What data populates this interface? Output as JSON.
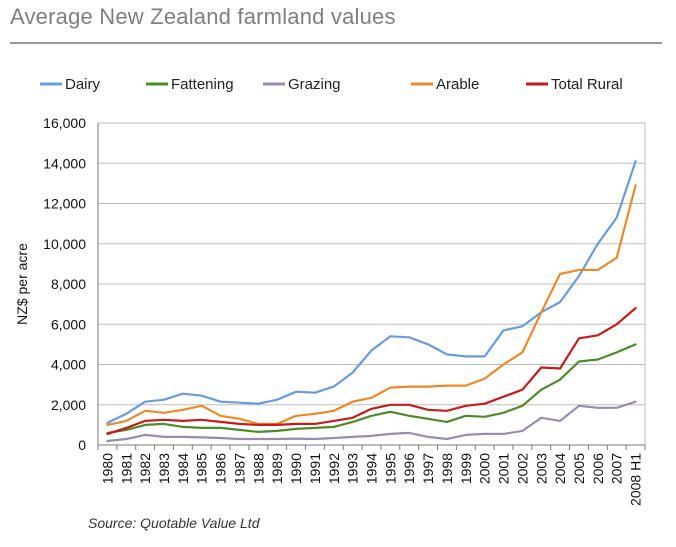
{
  "title": "Average New Zealand farmland values",
  "source": "Source: Quotable Value Ltd",
  "chart_data": {
    "type": "line",
    "ylabel": "NZ$ per acre",
    "xlabel": "",
    "ylim": [
      0,
      16000
    ],
    "yticks": [
      0,
      2000,
      4000,
      6000,
      8000,
      10000,
      12000,
      14000,
      16000
    ],
    "ytick_labels": [
      "0",
      "2,000",
      "4,000",
      "6,000",
      "8,000",
      "10,000",
      "12,000",
      "14,000",
      "16,000"
    ],
    "grid": "horizontal",
    "legend": "top",
    "categories": [
      "1980",
      "1981",
      "1982",
      "1983",
      "1984",
      "1985",
      "1986",
      "1987",
      "1988",
      "1989",
      "1990",
      "1991",
      "1992",
      "1993",
      "1994",
      "1995",
      "1996",
      "1997",
      "1998",
      "1999",
      "2000",
      "2001",
      "2002",
      "2003",
      "2004",
      "2005",
      "2006",
      "2007",
      "2008 H1"
    ],
    "series": [
      {
        "name": "Dairy",
        "color": "#6a9bdb",
        "values": [
          1100,
          1550,
          2150,
          2250,
          2550,
          2450,
          2150,
          2100,
          2050,
          2250,
          2650,
          2600,
          2900,
          3600,
          4700,
          5400,
          5350,
          5000,
          4500,
          4400,
          4400,
          5700,
          5900,
          6600,
          7100,
          8400,
          10000,
          11300,
          14100
        ]
      },
      {
        "name": "Fattening",
        "color": "#4e8a2c",
        "values": [
          600,
          750,
          1000,
          1050,
          900,
          850,
          850,
          750,
          650,
          700,
          800,
          850,
          900,
          1150,
          1450,
          1650,
          1450,
          1300,
          1150,
          1450,
          1400,
          1600,
          1950,
          2750,
          3250,
          4150,
          4250,
          4600,
          5000
        ]
      },
      {
        "name": "Grazing",
        "color": "#9a8cb0",
        "values": [
          200,
          300,
          500,
          400,
          400,
          380,
          350,
          300,
          300,
          300,
          320,
          300,
          350,
          400,
          450,
          550,
          600,
          400,
          300,
          500,
          550,
          550,
          700,
          1350,
          1200,
          1950,
          1850,
          1850,
          2150
        ]
      },
      {
        "name": "Arable",
        "color": "#e98a2a",
        "values": [
          1000,
          1200,
          1700,
          1600,
          1750,
          1950,
          1450,
          1300,
          1050,
          1050,
          1450,
          1550,
          1700,
          2150,
          2350,
          2850,
          2900,
          2900,
          2950,
          2950,
          3300,
          4000,
          4600,
          6600,
          8500,
          8700,
          8700,
          9300,
          12900
        ]
      },
      {
        "name": "Total Rural",
        "color": "#c41c1c",
        "values": [
          550,
          850,
          1200,
          1250,
          1200,
          1250,
          1150,
          1050,
          1000,
          1000,
          1050,
          1050,
          1200,
          1350,
          1800,
          2000,
          2000,
          1750,
          1700,
          1950,
          2050,
          2400,
          2750,
          3850,
          3800,
          5300,
          5450,
          6000,
          6800
        ]
      }
    ]
  }
}
